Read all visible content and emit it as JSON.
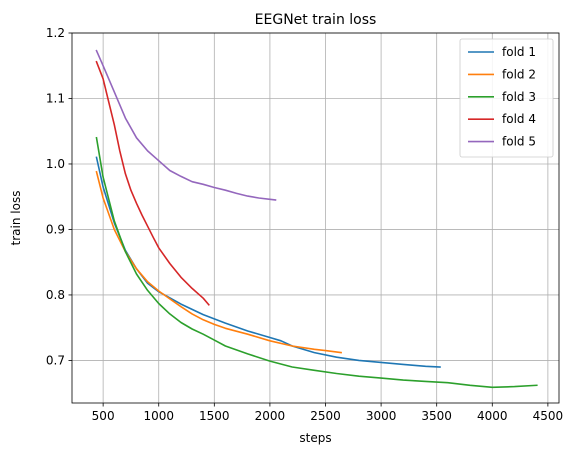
{
  "chart_data": {
    "type": "line",
    "title": "EEGNet train loss",
    "xlabel": "steps",
    "ylabel": "train loss",
    "xlim": [
      220,
      4600
    ],
    "ylim": [
      0.635,
      1.2
    ],
    "xticks": [
      500,
      1000,
      1500,
      2000,
      2500,
      3000,
      3500,
      4000,
      4500
    ],
    "yticks": [
      0.7,
      0.8,
      0.9,
      1.0,
      1.1,
      1.2
    ],
    "xtick_labels": [
      "500",
      "1000",
      "1500",
      "2000",
      "2500",
      "3000",
      "3500",
      "4000",
      "4500"
    ],
    "ytick_labels": [
      "0.7",
      "0.8",
      "0.9",
      "1.0",
      "1.1",
      "1.2"
    ],
    "grid": true,
    "legend": "top-right",
    "series": [
      {
        "name": "fold 1",
        "color": "#1f77b4",
        "x": [
          440,
          500,
          600,
          700,
          800,
          900,
          1000,
          1200,
          1400,
          1600,
          1800,
          2000,
          2100,
          2200,
          2400,
          2600,
          2800,
          3000,
          3200,
          3400,
          3530
        ],
        "y": [
          1.01,
          0.965,
          0.91,
          0.868,
          0.84,
          0.818,
          0.805,
          0.786,
          0.77,
          0.757,
          0.745,
          0.735,
          0.73,
          0.722,
          0.712,
          0.705,
          0.7,
          0.697,
          0.694,
          0.691,
          0.69
        ]
      },
      {
        "name": "fold 2",
        "color": "#ff7f0e",
        "x": [
          440,
          500,
          600,
          700,
          800,
          900,
          1000,
          1100,
          1200,
          1300,
          1400,
          1500,
          1600,
          1800,
          2000,
          2200,
          2400,
          2500,
          2640
        ],
        "y": [
          0.988,
          0.948,
          0.9,
          0.866,
          0.84,
          0.82,
          0.806,
          0.794,
          0.782,
          0.771,
          0.762,
          0.755,
          0.749,
          0.74,
          0.73,
          0.722,
          0.717,
          0.715,
          0.712
        ]
      },
      {
        "name": "fold 3",
        "color": "#2ca02c",
        "x": [
          440,
          500,
          600,
          700,
          800,
          900,
          1000,
          1100,
          1200,
          1300,
          1400,
          1500,
          1600,
          1800,
          2000,
          2200,
          2400,
          2600,
          2800,
          3000,
          3200,
          3400,
          3600,
          3800,
          4000,
          4200,
          4400
        ],
        "y": [
          1.04,
          0.98,
          0.913,
          0.866,
          0.832,
          0.807,
          0.787,
          0.771,
          0.758,
          0.748,
          0.74,
          0.731,
          0.722,
          0.71,
          0.699,
          0.69,
          0.685,
          0.68,
          0.676,
          0.673,
          0.67,
          0.668,
          0.666,
          0.662,
          0.659,
          0.66,
          0.662
        ]
      },
      {
        "name": "fold 4",
        "color": "#d62728",
        "x": [
          440,
          500,
          550,
          600,
          650,
          700,
          750,
          800,
          850,
          900,
          950,
          1000,
          1100,
          1200,
          1300,
          1400,
          1450
        ],
        "y": [
          1.156,
          1.13,
          1.095,
          1.06,
          1.02,
          0.985,
          0.96,
          0.94,
          0.922,
          0.905,
          0.888,
          0.872,
          0.848,
          0.827,
          0.81,
          0.795,
          0.785
        ]
      },
      {
        "name": "fold 5",
        "color": "#9467bd",
        "x": [
          440,
          500,
          600,
          700,
          800,
          900,
          1000,
          1100,
          1200,
          1300,
          1400,
          1500,
          1600,
          1700,
          1800,
          1900,
          2000,
          2050
        ],
        "y": [
          1.173,
          1.15,
          1.11,
          1.07,
          1.04,
          1.02,
          1.005,
          0.99,
          0.981,
          0.973,
          0.969,
          0.964,
          0.96,
          0.955,
          0.951,
          0.948,
          0.946,
          0.945
        ]
      }
    ]
  }
}
